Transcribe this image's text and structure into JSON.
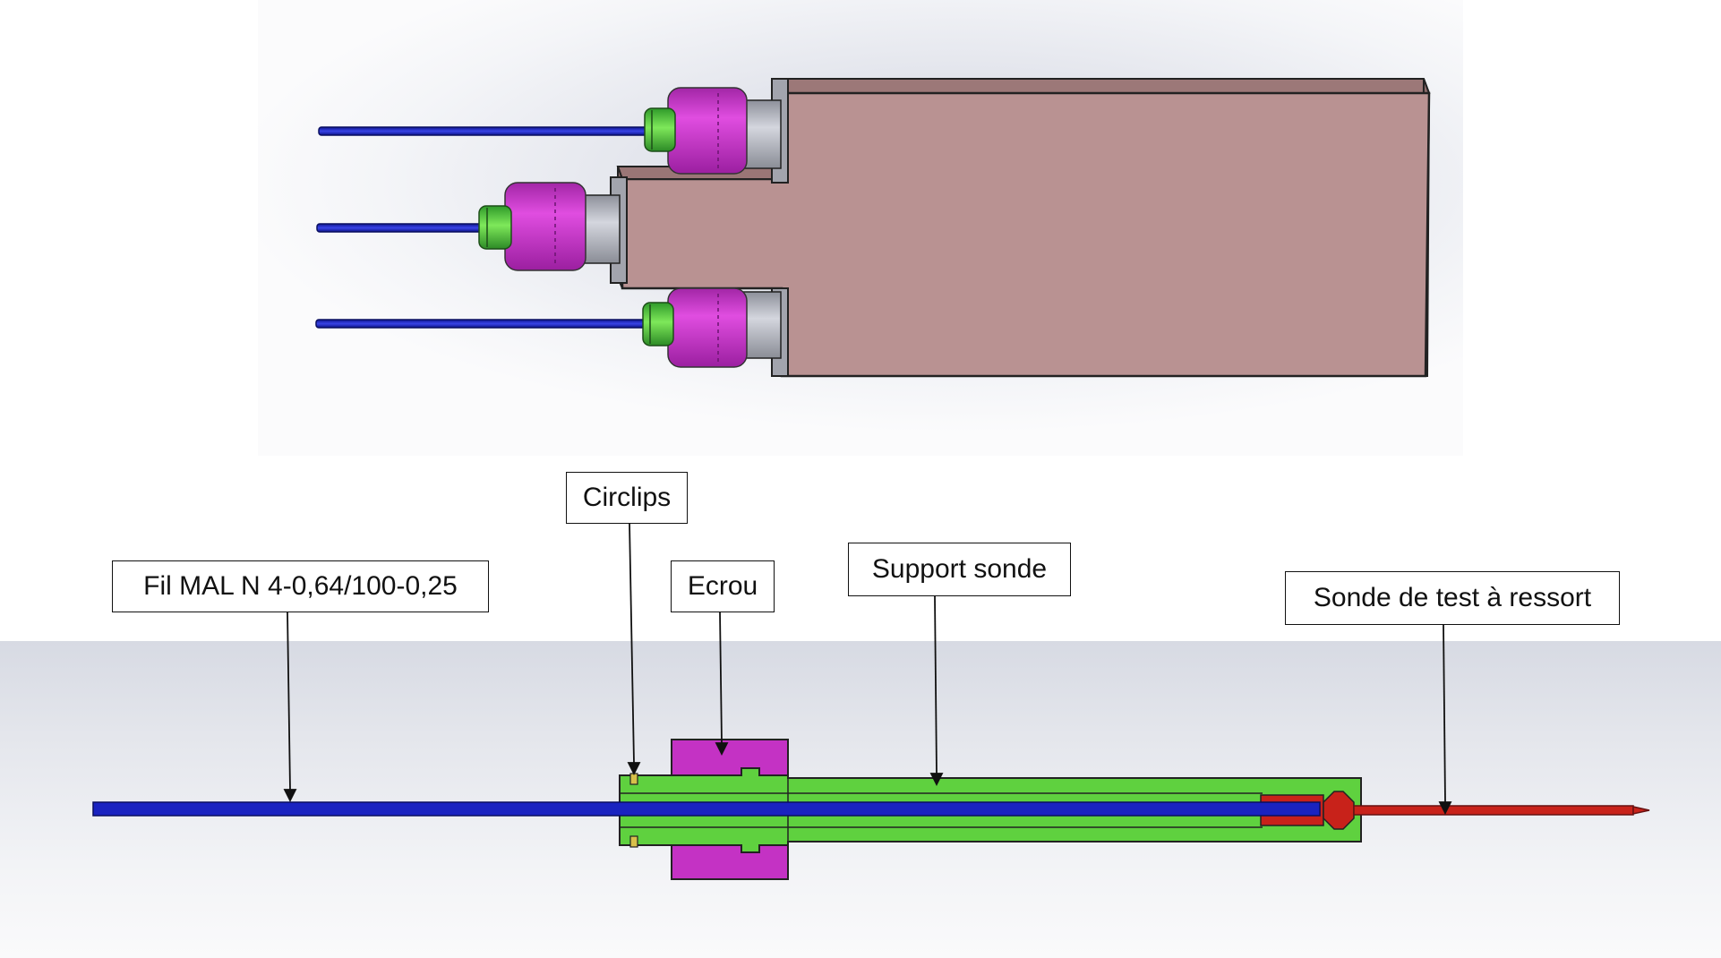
{
  "labels": {
    "wire": "Fil MAL N 4-0,64/100-0,25",
    "circlip": "Circlips",
    "nut": "Ecrou",
    "probe_support": "Support sonde",
    "spring_probe": "Sonde de test à ressort"
  },
  "colors": {
    "body": "#b99292",
    "nut": "#c837c8",
    "support": "#5fd13f",
    "wire": "#1a23c0",
    "probe": "#c8221a",
    "circlip": "#d8c04a",
    "ferrule": "#b9bcc6"
  }
}
